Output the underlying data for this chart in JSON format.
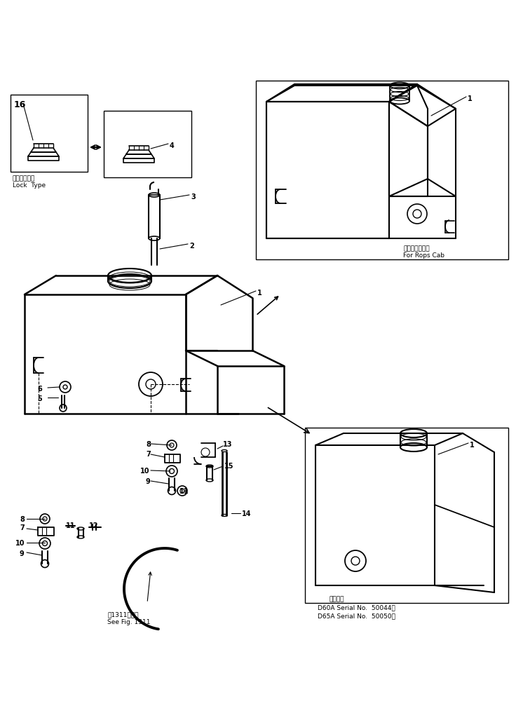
{
  "bg_color": "#ffffff",
  "line_color": "#000000",
  "fig_width": 7.36,
  "fig_height": 10.07,
  "dpi": 100,
  "annotations": {
    "lock_type_jp": "ロックタイプ",
    "lock_type_en": "Lock  Type",
    "rops_jp": "ロプスキャブ用",
    "rops_en": "For Rops Cab",
    "see_fig_jp": "第1311図参照",
    "see_fig_en": "See Fig. 1311",
    "serial_title": "適用号機",
    "serial1": "D60A Serial No.  50044～",
    "serial2": "D65A Serial No.  50050～"
  }
}
